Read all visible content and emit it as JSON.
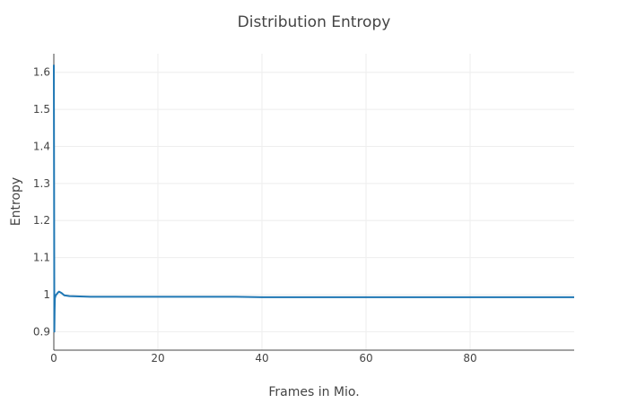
{
  "chart_data": {
    "type": "line",
    "title": "Distribution Entropy",
    "xlabel": "Frames in Mio.",
    "ylabel": "Entropy",
    "xlim": [
      0,
      100
    ],
    "ylim": [
      0.85,
      1.65
    ],
    "x_ticks": [
      0,
      20,
      40,
      60,
      80
    ],
    "y_ticks": [
      0.9,
      1,
      1.1,
      1.2,
      1.3,
      1.4,
      1.5,
      1.6
    ],
    "x_tick_labels": [
      "0",
      "20",
      "40",
      "60",
      "80"
    ],
    "y_tick_labels": [
      "0.9",
      "1",
      "1.1",
      "1.2",
      "1.3",
      "1.4",
      "1.5",
      "1.6"
    ],
    "grid": true,
    "legend": "none",
    "series": [
      {
        "color": "#1f77b4",
        "x": [
          0,
          0.05,
          0.1,
          0.15,
          0.2,
          0.3,
          0.4,
          0.5,
          0.7,
          1,
          1.5,
          2,
          3,
          5,
          7,
          10,
          15,
          20,
          25,
          30,
          35,
          40,
          50,
          60,
          70,
          80,
          90,
          100
        ],
        "y": [
          1.62,
          1.3,
          0.9,
          0.96,
          0.99,
          0.995,
          0.999,
          1.0,
          1.004,
          1.008,
          1.004,
          0.998,
          0.996,
          0.995,
          0.994,
          0.994,
          0.994,
          0.994,
          0.994,
          0.994,
          0.994,
          0.993,
          0.993,
          0.993,
          0.993,
          0.993,
          0.993,
          0.993
        ]
      }
    ]
  }
}
